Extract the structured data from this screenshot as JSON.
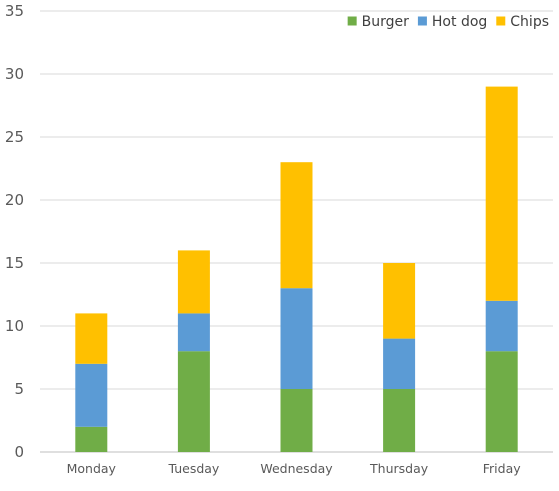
{
  "chart_data": {
    "type": "bar",
    "stacked": true,
    "title": "",
    "xlabel": "",
    "ylabel": "",
    "categories": [
      "Monday",
      "Tuesday",
      "Wednesday",
      "Thursday",
      "Friday"
    ],
    "series": [
      {
        "name": "Burger",
        "color": "#70ad47",
        "values": [
          2,
          8,
          5,
          5,
          8
        ]
      },
      {
        "name": "Hot dog",
        "color": "#5b9bd5",
        "values": [
          5,
          3,
          8,
          4,
          4
        ]
      },
      {
        "name": "Chips",
        "color": "#ffc000",
        "values": [
          4,
          5,
          10,
          6,
          17
        ]
      }
    ],
    "ylim": [
      0,
      35
    ],
    "yticks": [
      "0",
      "5",
      "10",
      "15",
      "20",
      "25",
      "30",
      "35"
    ],
    "grid": true,
    "legend": "top-right"
  }
}
